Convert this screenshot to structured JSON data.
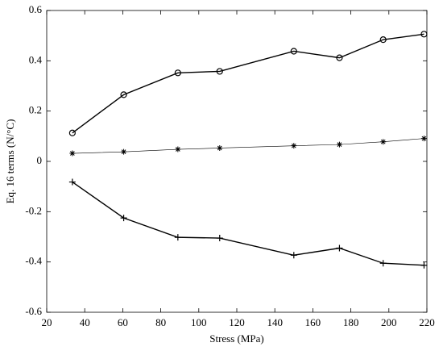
{
  "chart_data": {
    "type": "line",
    "x_label": "Stress (MPa)",
    "y_label": "Eq. 16 terms (N/°C)",
    "x": [
      33.5,
      60.5,
      89,
      111,
      150,
      174,
      197,
      218.5
    ],
    "series": [
      {
        "color": "#000000",
        "marker": "circle",
        "line_width": 1.4,
        "values": [
          0.113,
          0.265,
          0.352,
          0.358,
          0.438,
          0.412,
          0.484,
          0.506
        ]
      },
      {
        "color": "#000000",
        "marker": "star",
        "line_width": 0.6,
        "values": [
          0.032,
          0.038,
          0.048,
          0.053,
          0.062,
          0.067,
          0.078,
          0.091
        ]
      },
      {
        "color": "#000000",
        "marker": "plus",
        "line_width": 1.4,
        "values": [
          -0.082,
          -0.225,
          -0.302,
          -0.305,
          -0.373,
          -0.345,
          -0.405,
          -0.413
        ]
      }
    ],
    "xlim": [
      20,
      220
    ],
    "xticks": [
      20,
      40,
      60,
      80,
      100,
      120,
      140,
      160,
      180,
      200,
      220
    ],
    "ylim": [
      -0.6,
      0.6
    ],
    "yticks": [
      -0.6,
      -0.4,
      -0.2,
      0,
      0.2,
      0.4,
      0.6
    ],
    "grid": false
  }
}
